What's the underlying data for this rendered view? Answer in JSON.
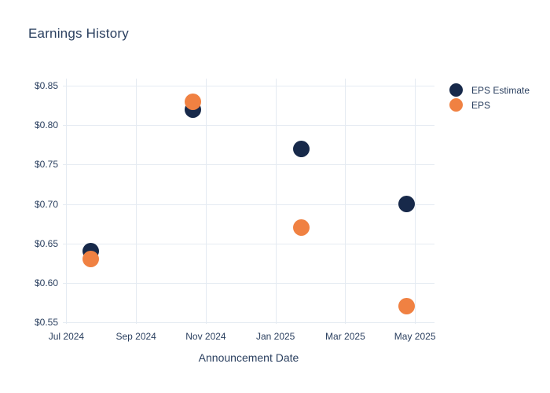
{
  "style": {
    "background": "#ffffff",
    "text_color": "#2a3f5f",
    "grid_color": "#e5ebf2"
  },
  "chart_data": {
    "type": "scatter",
    "title": "Earnings History",
    "xlabel": "Announcement Date",
    "ylabel": "",
    "grid": true,
    "legend_position": "right",
    "x_unit": "months since Jul 1 2024 (positions estimated from gridlines)",
    "xlim": [
      -0.1,
      10.56
    ],
    "ylim": [
      0.548,
      0.859
    ],
    "x": [
      0.71,
      3.63,
      6.73,
      9.75
    ],
    "approx_dates": [
      "~Jul 22 2024",
      "~Oct 21 2024",
      "~Jan 23 2025",
      "~Apr 24 2025"
    ],
    "series": [
      {
        "name": "EPS Estimate",
        "color": "#17294a",
        "values": [
          0.64,
          0.82,
          0.77,
          0.7
        ]
      },
      {
        "name": "EPS",
        "color": "#f08142",
        "values": [
          0.63,
          0.83,
          0.67,
          0.57
        ]
      }
    ],
    "xticks": [
      {
        "label": "Jul 2024",
        "x": 0
      },
      {
        "label": "Sep 2024",
        "x": 2
      },
      {
        "label": "Nov 2024",
        "x": 4
      },
      {
        "label": "Jan 2025",
        "x": 6
      },
      {
        "label": "Mar 2025",
        "x": 8
      },
      {
        "label": "May 2025",
        "x": 10
      }
    ],
    "yticks": [
      {
        "label": "$0.85",
        "value": 0.85
      },
      {
        "label": "$0.80",
        "value": 0.8
      },
      {
        "label": "$0.75",
        "value": 0.75
      },
      {
        "label": "$0.70",
        "value": 0.7
      },
      {
        "label": "$0.65",
        "value": 0.65
      },
      {
        "label": "$0.60",
        "value": 0.6
      },
      {
        "label": "$0.55",
        "value": 0.55
      }
    ],
    "marker_diameter_px": 21
  }
}
